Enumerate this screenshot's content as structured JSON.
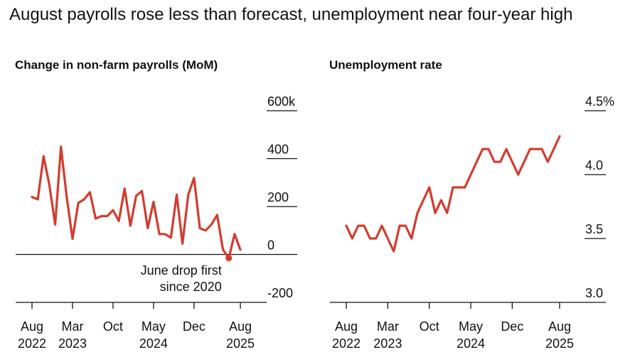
{
  "headline": "August payrolls rose less than forecast, unemployment near four-year high",
  "colors": {
    "line": "#d43b2d",
    "axis": "#111111",
    "text": "#111111"
  },
  "chart_data": [
    {
      "type": "line",
      "title": "Change in non-farm payrolls (MoM)",
      "ylim": [
        -200,
        600
      ],
      "yticks": [
        {
          "value": 600,
          "label": "600k"
        },
        {
          "value": 400,
          "label": "400"
        },
        {
          "value": 200,
          "label": "200"
        },
        {
          "value": 0,
          "label": "0"
        },
        {
          "value": -200,
          "label": "-200"
        }
      ],
      "xticks": [
        {
          "index": 0,
          "month": "Aug",
          "year": "2022"
        },
        {
          "index": 7,
          "month": "Mar",
          "year": "2023"
        },
        {
          "index": 14,
          "month": "Oct",
          "year": ""
        },
        {
          "index": 21,
          "month": "May",
          "year": "2024"
        },
        {
          "index": 28,
          "month": "Dec",
          "year": ""
        },
        {
          "index": 36,
          "month": "Aug",
          "year": "2025"
        }
      ],
      "series": [
        {
          "values": [
            240,
            230,
            410,
            290,
            125,
            450,
            240,
            65,
            215,
            230,
            260,
            150,
            160,
            160,
            185,
            140,
            275,
            120,
            245,
            265,
            110,
            220,
            85,
            85,
            70,
            250,
            45,
            250,
            320,
            110,
            100,
            125,
            165,
            20,
            -15,
            85,
            20
          ]
        }
      ],
      "annotation": {
        "index": 34,
        "lines": [
          "June drop first",
          "since 2020"
        ]
      }
    },
    {
      "type": "line",
      "title": "Unemployment rate",
      "ylim": [
        3.0,
        4.5
      ],
      "yticks": [
        {
          "value": 4.5,
          "label": "4.5%"
        },
        {
          "value": 4.0,
          "label": "4.0"
        },
        {
          "value": 3.5,
          "label": "3.5"
        },
        {
          "value": 3.0,
          "label": "3.0"
        }
      ],
      "xticks": [
        {
          "index": 0,
          "month": "Aug",
          "year": "2022"
        },
        {
          "index": 7,
          "month": "Mar",
          "year": "2023"
        },
        {
          "index": 14,
          "month": "Oct",
          "year": ""
        },
        {
          "index": 21,
          "month": "May",
          "year": "2024"
        },
        {
          "index": 28,
          "month": "Dec",
          "year": ""
        },
        {
          "index": 36,
          "month": "Aug",
          "year": "2025"
        }
      ],
      "series": [
        {
          "values": [
            3.6,
            3.5,
            3.6,
            3.6,
            3.5,
            3.5,
            3.6,
            3.5,
            3.4,
            3.6,
            3.6,
            3.5,
            3.7,
            3.8,
            3.9,
            3.7,
            3.8,
            3.7,
            3.9,
            3.9,
            3.9,
            4.0,
            4.1,
            4.2,
            4.2,
            4.1,
            4.1,
            4.2,
            4.1,
            4.0,
            4.1,
            4.2,
            4.2,
            4.2,
            4.1,
            4.2,
            4.3
          ]
        }
      ]
    }
  ]
}
